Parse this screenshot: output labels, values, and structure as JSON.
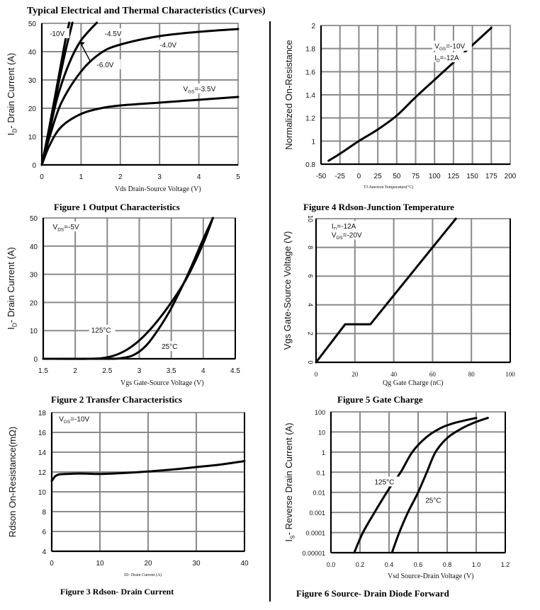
{
  "page": {
    "title": "Typical Electrical and Thermal Characteristics (Curves)"
  },
  "chart_data": [
    {
      "id": "fig1",
      "type": "line",
      "caption": "Figure 1 Output Characteristics",
      "title": "",
      "xlabel": "Vds Drain-Source Voltage (V)",
      "ylabel": "I_D- Drain Current (A)",
      "xlim": [
        0,
        5
      ],
      "ylim": [
        0,
        50
      ],
      "xticks": [
        0,
        1,
        2,
        3,
        4,
        5
      ],
      "yticks": [
        0,
        10,
        20,
        30,
        40,
        50
      ],
      "xtick_labels": [
        "0",
        "1",
        "2",
        "3",
        "4",
        "5"
      ],
      "ytick_labels": [
        "0",
        "10",
        "20",
        "30",
        "40",
        "50"
      ],
      "grid": true,
      "series": [
        {
          "name": "-10V",
          "x": [
            0,
            0.2,
            0.4,
            0.6,
            0.7
          ],
          "y": [
            0,
            14,
            29,
            44,
            51
          ]
        },
        {
          "name": "-6.0V",
          "x": [
            0,
            0.2,
            0.4,
            0.6,
            0.78
          ],
          "y": [
            0,
            13,
            27,
            40,
            51
          ]
        },
        {
          "name": "-4.5V",
          "x": [
            0,
            0.2,
            0.4,
            0.7,
            1.0,
            1.4
          ],
          "y": [
            0,
            12,
            24,
            36,
            44,
            51
          ]
        },
        {
          "name": "-4.0V",
          "x": [
            0,
            0.2,
            0.5,
            1.0,
            1.5,
            2.0,
            3.0,
            4.0,
            5.0
          ],
          "y": [
            0,
            10,
            22,
            33,
            39.5,
            42.5,
            45.5,
            47,
            48
          ]
        },
        {
          "name": "VGS=-3.5V",
          "x": [
            0,
            0.2,
            0.5,
            1.0,
            1.5,
            2.0,
            3.0,
            4.0,
            5.0
          ],
          "y": [
            0,
            7,
            13.5,
            18,
            20,
            21,
            22,
            23,
            24
          ]
        }
      ],
      "annotations": [
        {
          "text": "-10V",
          "x": 0.2,
          "y": 45.5
        },
        {
          "text": "-4.5V",
          "x": 1.6,
          "y": 45.5
        },
        {
          "text": "-6.0V",
          "x": 1.4,
          "y": 34.5
        },
        {
          "text": "-4.0V",
          "x": 3.0,
          "y": 41.5
        },
        {
          "text": "VGS=-3.5V",
          "x": 3.6,
          "y": 26
        }
      ]
    },
    {
      "id": "fig2",
      "type": "line",
      "caption": "Figure 2 Transfer Characteristics",
      "title": "",
      "xlabel": "Vgs Gate-Source Voltage (V)",
      "ylabel": "I_D- Drain Current (A)",
      "xlim": [
        1.5,
        4.5
      ],
      "ylim": [
        0,
        50
      ],
      "xticks": [
        1.5,
        2,
        2.5,
        3,
        3.5,
        4,
        4.5
      ],
      "yticks": [
        0,
        10,
        20,
        30,
        40,
        50
      ],
      "xtick_labels": [
        "1.5",
        "2",
        "2.5",
        "3",
        "3.5",
        "4",
        "4.5"
      ],
      "ytick_labels": [
        "0",
        "10",
        "20",
        "30",
        "40",
        "50"
      ],
      "grid": true,
      "series": [
        {
          "name": "125°C",
          "x": [
            1.5,
            2.2,
            2.5,
            2.75,
            3.0,
            3.25,
            3.5,
            3.75,
            4.0,
            4.15
          ],
          "y": [
            0,
            0,
            0.5,
            2.5,
            6.5,
            12.5,
            20,
            29,
            41,
            50
          ]
        },
        {
          "name": "25°C",
          "x": [
            1.5,
            2.5,
            2.7,
            2.9,
            3.1,
            3.3,
            3.5,
            3.75,
            4.0,
            4.15
          ],
          "y": [
            0,
            0,
            0.2,
            1.2,
            4.5,
            10.5,
            18,
            29.5,
            42.5,
            50
          ]
        }
      ],
      "annotations": [
        {
          "text": "VDS=-5V",
          "x": 1.65,
          "y": 46
        },
        {
          "text": "125°C",
          "x": 2.25,
          "y": 9.3
        },
        {
          "text": "25°C",
          "x": 3.35,
          "y": 3.5
        }
      ]
    },
    {
      "id": "fig3",
      "type": "line",
      "caption": "Figure 3 Rdson- Drain Current",
      "title": "",
      "xlabel": "ID- Drain Current (A)",
      "ylabel": "Rdson On-Resistance(mΩ)",
      "xlim": [
        0,
        40
      ],
      "ylim": [
        4,
        18
      ],
      "xticks": [
        0,
        10,
        20,
        30,
        40
      ],
      "yticks": [
        4,
        6,
        8,
        10,
        12,
        14,
        16,
        18
      ],
      "xtick_labels": [
        "0",
        "10",
        "20",
        "30",
        "40"
      ],
      "ytick_labels": [
        "4",
        "6",
        "8",
        "10",
        "12",
        "14",
        "16",
        "18"
      ],
      "grid": true,
      "series": [
        {
          "name": "VGS=-10V",
          "x": [
            0,
            0.3,
            0.8,
            1.5,
            3,
            6,
            10,
            15,
            20,
            25,
            30,
            35,
            40
          ],
          "y": [
            11.1,
            11.3,
            11.6,
            11.75,
            11.8,
            11.85,
            11.8,
            11.9,
            12.05,
            12.25,
            12.5,
            12.75,
            13.1
          ]
        }
      ],
      "annotations": [
        {
          "text": "VGS=-10V",
          "x": 1.5,
          "y": 17.1
        }
      ]
    },
    {
      "id": "fig4",
      "type": "line",
      "caption": "Figure 4 Rdson-Junction Temperature",
      "title": "",
      "xlabel": "TJ-Junction Temperature(°C)",
      "ylabel": "Normalized On-Resistance",
      "xlim": [
        -50,
        200
      ],
      "ylim": [
        0.8,
        2
      ],
      "xticks": [
        -50,
        -25,
        0,
        25,
        50,
        75,
        100,
        125,
        150,
        175,
        200
      ],
      "yticks": [
        0.8,
        1,
        1.2,
        1.4,
        1.6,
        1.8,
        2
      ],
      "xtick_labels": [
        "-50",
        "-25",
        "0",
        "25",
        "50",
        "75",
        "100",
        "125",
        "150",
        "175",
        "200"
      ],
      "ytick_labels": [
        "0.8",
        "1",
        "1.2",
        "1.4",
        "1.6",
        "1.8",
        "2"
      ],
      "grid": true,
      "series": [
        {
          "name": "VGS=-10V, ID=-12A",
          "x": [
            -40,
            -25,
            0,
            25,
            50,
            75,
            100,
            125,
            150,
            175
          ],
          "y": [
            0.83,
            0.89,
            1.0,
            1.1,
            1.22,
            1.38,
            1.53,
            1.68,
            1.83,
            1.98
          ]
        }
      ],
      "annotations": [
        {
          "text": "VGS=-10V",
          "x": 100,
          "y": 1.8
        },
        {
          "text": "ID=-12A",
          "x": 100,
          "y": 1.7
        }
      ]
    },
    {
      "id": "fig5",
      "type": "line",
      "caption": "Figure 5 Gate Charge",
      "title": "",
      "xlabel": "Qg Gate Charge (nC)",
      "ylabel": "Vgs Gate-Source Voltage (V)",
      "xlim": [
        0,
        100
      ],
      "ylim": [
        0,
        10
      ],
      "xticks": [
        0,
        20,
        40,
        60,
        80,
        100
      ],
      "yticks": [
        0,
        2,
        4,
        6,
        8,
        10
      ],
      "xtick_labels": [
        "0",
        "20",
        "40",
        "60",
        "80",
        "100"
      ],
      "ytick_labels": [
        "0",
        "2",
        "4",
        "6",
        "8",
        "10"
      ],
      "grid": true,
      "series": [
        {
          "name": "ID=-12A, VDS=-20V",
          "x": [
            0,
            15,
            28,
            60,
            72
          ],
          "y": [
            0,
            2.65,
            2.65,
            8,
            10
          ]
        }
      ],
      "annotations": [
        {
          "text": "ID=-12A",
          "x": 8,
          "y": 9.3
        },
        {
          "text": "VDS=-20V",
          "x": 8,
          "y": 8.7
        }
      ]
    },
    {
      "id": "fig6",
      "type": "line",
      "caption": "Figure 6 Source- Drain Diode Forward",
      "title": "",
      "xlabel": "Vsd Source-Drain Voltage (V)",
      "ylabel": "I_S- Reverse Drain Current (A)",
      "xlim": [
        0,
        1.2
      ],
      "ylim": [
        1e-05,
        100
      ],
      "yscale": "log",
      "xticks": [
        0,
        0.2,
        0.4,
        0.6,
        0.8,
        1.0,
        1.2
      ],
      "yticks": [
        1e-05,
        0.0001,
        0.001,
        0.01,
        0.1,
        1,
        10,
        100
      ],
      "xtick_labels": [
        "0.0",
        "0.2",
        "0.4",
        "0.6",
        "0.8",
        "1.0",
        "1.2"
      ],
      "ytick_labels": [
        "0.00001",
        "0.0001",
        "0.001",
        "0.01",
        "0.1",
        "1",
        "10",
        "100"
      ],
      "grid": true,
      "series": [
        {
          "name": "125°C",
          "x": [
            0.16,
            0.22,
            0.3,
            0.4,
            0.48,
            0.56,
            0.65,
            0.75,
            0.85,
            1.0
          ],
          "y": [
            1e-05,
            0.0001,
            0.001,
            0.015,
            0.1,
            1,
            5,
            15,
            28,
            50
          ]
        },
        {
          "name": "25°C",
          "x": [
            0.42,
            0.47,
            0.53,
            0.6,
            0.66,
            0.72,
            0.8,
            0.9,
            1.0,
            1.08
          ],
          "y": [
            1e-05,
            0.0001,
            0.001,
            0.01,
            0.1,
            1,
            5,
            15,
            32,
            50
          ]
        }
      ],
      "annotations": [
        {
          "text": "125°C",
          "x": 0.3,
          "y": 0.025
        },
        {
          "text": "25°C",
          "x": 0.65,
          "y": 0.003
        }
      ]
    }
  ]
}
